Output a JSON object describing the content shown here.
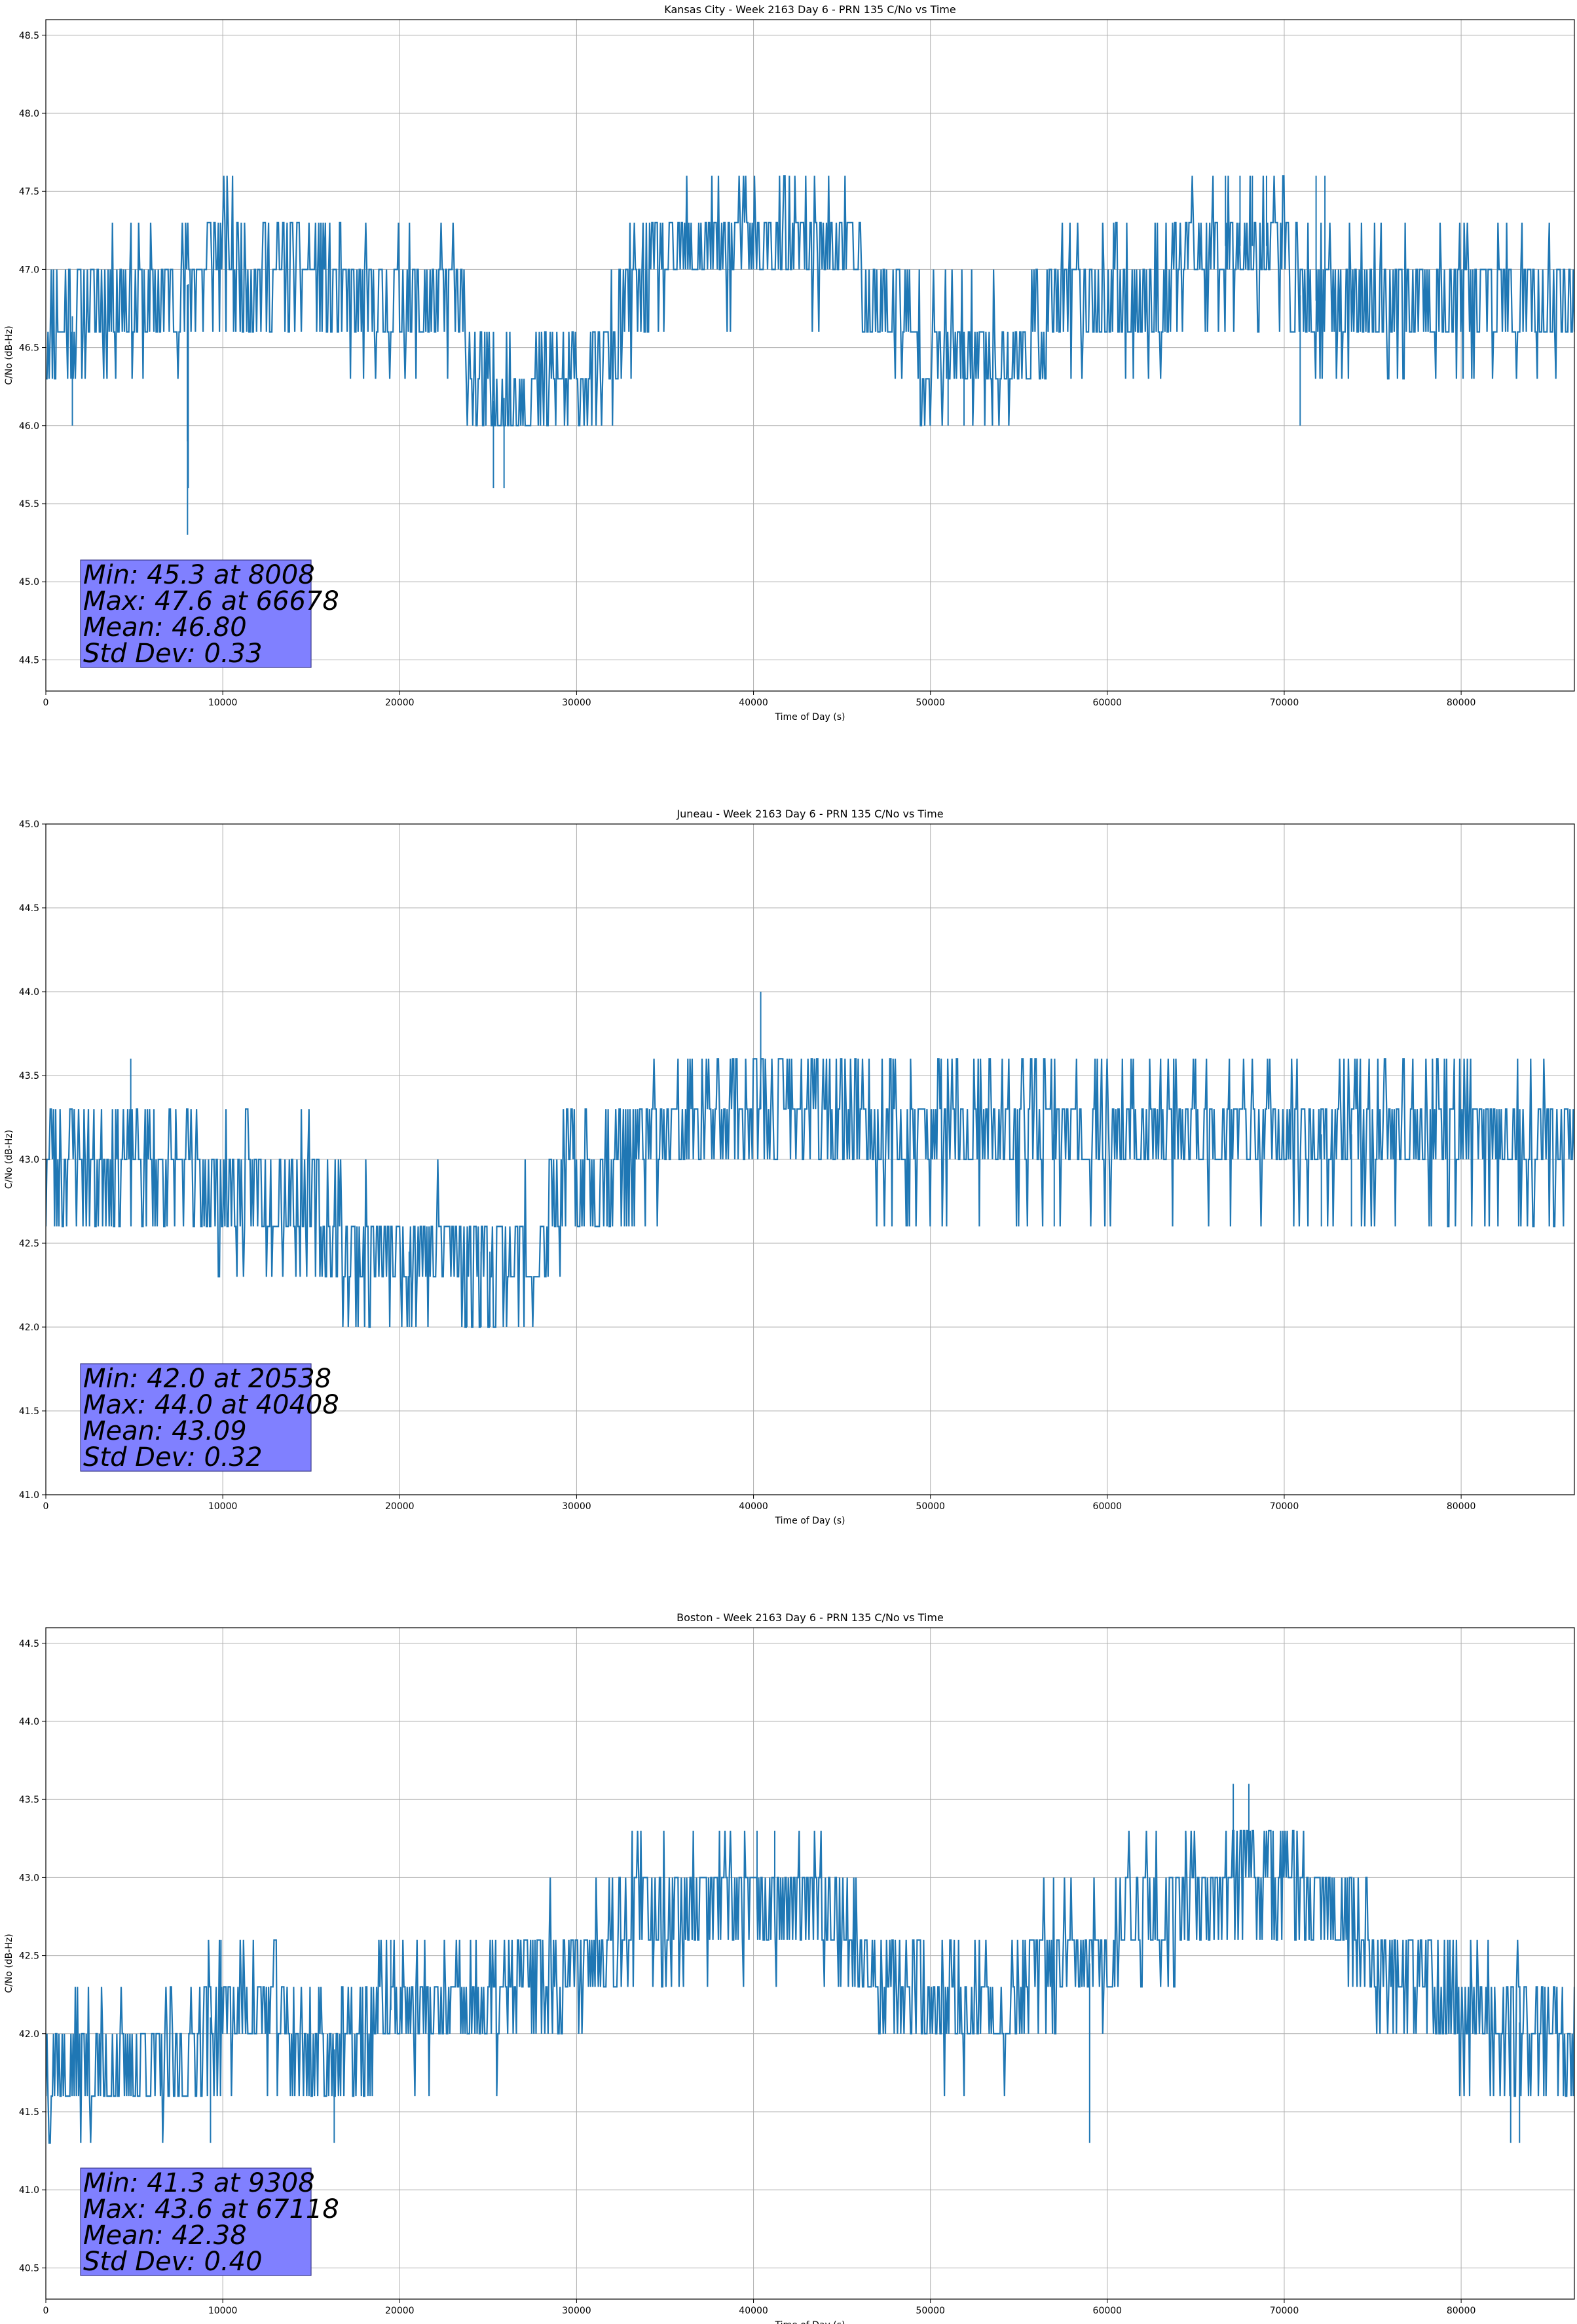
{
  "figure": {
    "series_color": "#1f77b4",
    "stats_box_color": "#8080ff"
  },
  "chart_data": [
    {
      "type": "line",
      "title": "Kansas City - Week 2163 Day 6 - PRN 135 C/No vs Time",
      "xlabel": "Time of Day (s)",
      "ylabel": "C/No (dB-Hz)",
      "xlim": [
        0,
        86400
      ],
      "ylim": [
        44.3,
        48.6
      ],
      "xticks": [
        0,
        10000,
        20000,
        30000,
        40000,
        50000,
        60000,
        70000,
        80000
      ],
      "yticks": [
        44.5,
        45.0,
        45.5,
        46.0,
        46.5,
        47.0,
        47.5,
        48.0,
        48.5
      ],
      "grid": true,
      "levels": [
        46.0,
        46.3,
        46.6,
        47.0,
        47.3,
        47.6
      ],
      "base_profile": [
        [
          0,
          46.6
        ],
        [
          3000,
          46.8
        ],
        [
          7000,
          46.8
        ],
        [
          10000,
          47.1
        ],
        [
          12000,
          47.0
        ],
        [
          15500,
          47.0
        ],
        [
          16500,
          46.8
        ],
        [
          23000,
          46.8
        ],
        [
          24000,
          46.45
        ],
        [
          25000,
          46.15
        ],
        [
          30000,
          46.3
        ],
        [
          32000,
          46.45
        ],
        [
          33000,
          46.8
        ],
        [
          35000,
          47.0
        ],
        [
          37000,
          47.15
        ],
        [
          45500,
          47.15
        ],
        [
          46500,
          46.8
        ],
        [
          48500,
          46.75
        ],
        [
          49500,
          46.45
        ],
        [
          55000,
          46.45
        ],
        [
          57000,
          46.8
        ],
        [
          63000,
          46.8
        ],
        [
          64000,
          47.0
        ],
        [
          66000,
          47.15
        ],
        [
          70000,
          47.15
        ],
        [
          71000,
          46.8
        ],
        [
          74000,
          46.8
        ],
        [
          75000,
          46.8
        ],
        [
          86400,
          46.8
        ]
      ],
      "noise": 0.25,
      "seed": 11,
      "extremes": [
        {
          "x": 8008,
          "y": 45.3
        },
        {
          "x": 8000,
          "y": 45.9
        },
        {
          "x": 8050,
          "y": 45.6
        },
        {
          "x": 1500,
          "y": 46.0
        },
        {
          "x": 25300,
          "y": 45.6
        },
        {
          "x": 25900,
          "y": 45.6
        },
        {
          "x": 51000,
          "y": 46.0
        },
        {
          "x": 51900,
          "y": 46.0
        },
        {
          "x": 70900,
          "y": 46.0
        },
        {
          "x": 66678,
          "y": 47.6
        },
        {
          "x": 67500,
          "y": 47.6
        },
        {
          "x": 68200,
          "y": 47.6
        },
        {
          "x": 69000,
          "y": 47.6
        },
        {
          "x": 71800,
          "y": 47.6
        },
        {
          "x": 72300,
          "y": 47.6
        }
      ],
      "stats": [
        "Min: 45.3 at 8008",
        "Max: 47.6 at 66678",
        "Mean: 46.80",
        "Std Dev: 0.33"
      ]
    },
    {
      "type": "line",
      "title": "Juneau - Week 2163 Day 6 - PRN 135 C/No vs Time",
      "xlabel": "Time of Day (s)",
      "ylabel": "C/No (dB-Hz)",
      "xlim": [
        0,
        86400
      ],
      "ylim": [
        41.0,
        45.0
      ],
      "xticks": [
        0,
        10000,
        20000,
        30000,
        40000,
        50000,
        60000,
        70000,
        80000
      ],
      "yticks": [
        41.0,
        41.5,
        42.0,
        42.5,
        43.0,
        43.5,
        44.0,
        44.5,
        45.0
      ],
      "grid": true,
      "levels": [
        42.0,
        42.3,
        42.6,
        43.0,
        43.3,
        43.6
      ],
      "base_profile": [
        [
          0,
          43.0
        ],
        [
          5000,
          43.0
        ],
        [
          10000,
          42.8
        ],
        [
          15000,
          42.8
        ],
        [
          16000,
          42.6
        ],
        [
          17000,
          42.45
        ],
        [
          28000,
          42.45
        ],
        [
          29000,
          42.8
        ],
        [
          32000,
          43.0
        ],
        [
          36000,
          43.15
        ],
        [
          38000,
          43.3
        ],
        [
          46000,
          43.3
        ],
        [
          47000,
          43.15
        ],
        [
          86400,
          43.15
        ]
      ],
      "noise": 0.25,
      "seed": 23,
      "extremes": [
        {
          "x": 40408,
          "y": 44.0
        },
        {
          "x": 4800,
          "y": 43.6
        },
        {
          "x": 20538,
          "y": 42.0
        },
        {
          "x": 23800,
          "y": 42.0
        },
        {
          "x": 24600,
          "y": 42.0
        },
        {
          "x": 25100,
          "y": 42.0
        },
        {
          "x": 48700,
          "y": 42.6
        },
        {
          "x": 57000,
          "y": 42.6
        },
        {
          "x": 72100,
          "y": 42.6
        },
        {
          "x": 73800,
          "y": 42.6
        }
      ],
      "stats": [
        "Min: 42.0 at 20538",
        "Max: 44.0 at 40408",
        "Mean: 43.09",
        "Std Dev: 0.32"
      ]
    },
    {
      "type": "line",
      "title": "Boston - Week 2163 Day 6 - PRN 135 C/No vs Time",
      "xlabel": "Time of Day (s)",
      "ylabel": "C/No (dB-Hz)",
      "xlim": [
        0,
        86400
      ],
      "ylim": [
        40.3,
        44.6
      ],
      "xticks": [
        0,
        10000,
        20000,
        30000,
        40000,
        50000,
        60000,
        70000,
        80000
      ],
      "yticks": [
        40.5,
        41.0,
        41.5,
        42.0,
        42.5,
        43.0,
        43.5,
        44.0,
        44.5
      ],
      "grid": true,
      "levels": [
        41.3,
        41.6,
        42.0,
        42.3,
        42.6,
        43.0,
        43.3,
        43.6
      ],
      "base_profile": [
        [
          0,
          41.8
        ],
        [
          8000,
          41.8
        ],
        [
          9000,
          42.1
        ],
        [
          13000,
          42.15
        ],
        [
          14000,
          41.9
        ],
        [
          18000,
          41.9
        ],
        [
          19000,
          42.15
        ],
        [
          26000,
          42.15
        ],
        [
          27000,
          42.45
        ],
        [
          30000,
          42.45
        ],
        [
          33000,
          42.8
        ],
        [
          45000,
          42.8
        ],
        [
          46000,
          42.45
        ],
        [
          48000,
          42.3
        ],
        [
          50000,
          42.15
        ],
        [
          55000,
          42.15
        ],
        [
          56000,
          42.45
        ],
        [
          60000,
          42.45
        ],
        [
          61000,
          42.8
        ],
        [
          64000,
          42.8
        ],
        [
          65000,
          43.0
        ],
        [
          70000,
          43.0
        ],
        [
          72000,
          42.8
        ],
        [
          74000,
          42.8
        ],
        [
          75000,
          42.45
        ],
        [
          78000,
          42.3
        ],
        [
          80000,
          42.15
        ],
        [
          86400,
          42.0
        ]
      ],
      "noise": 0.25,
      "seed": 37,
      "extremes": [
        {
          "x": 9308,
          "y": 41.3
        },
        {
          "x": 16300,
          "y": 41.3
        },
        {
          "x": 59000,
          "y": 41.3
        },
        {
          "x": 82800,
          "y": 41.3
        },
        {
          "x": 83300,
          "y": 41.3
        },
        {
          "x": 67118,
          "y": 43.6
        },
        {
          "x": 68000,
          "y": 43.6
        },
        {
          "x": 40200,
          "y": 43.3
        },
        {
          "x": 41200,
          "y": 43.3
        },
        {
          "x": 9900,
          "y": 42.6
        },
        {
          "x": 19500,
          "y": 42.6
        }
      ],
      "stats": [
        "Min: 41.3 at 9308",
        "Max: 43.6 at 67118",
        "Mean: 42.38",
        "Std Dev: 0.40"
      ]
    }
  ]
}
